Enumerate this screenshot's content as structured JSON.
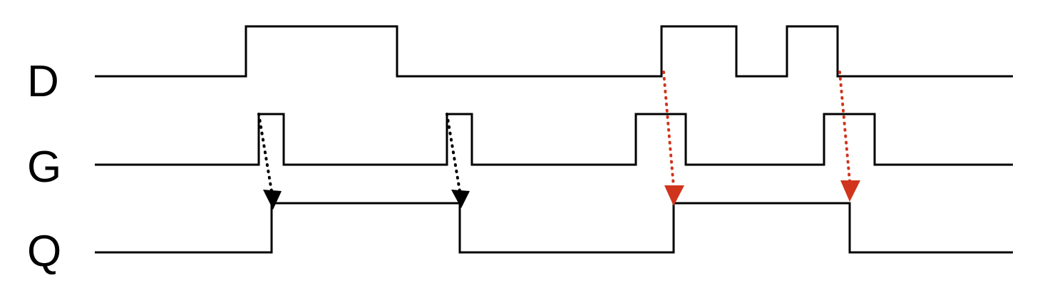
{
  "signals": [
    {
      "id": "D",
      "label": "D"
    },
    {
      "id": "G",
      "label": "G"
    },
    {
      "id": "Q",
      "label": "Q"
    }
  ],
  "colors": {
    "waveform": "#000000",
    "arrow_gate_causal": "#000000",
    "arrow_data_causal": "#d0341c"
  }
}
